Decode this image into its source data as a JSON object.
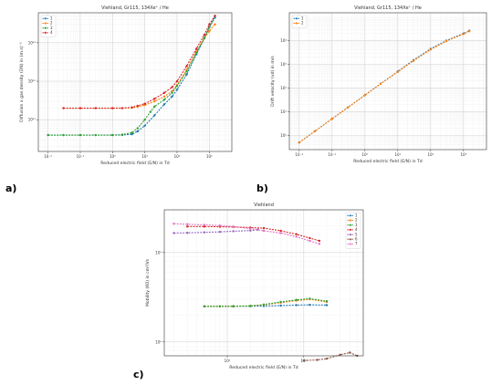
{
  "chart_data": [
    {
      "panel_label": "a)",
      "type": "line",
      "title": "Viehland, Gr115, 134Xe⁺ / He",
      "xlabel": "Reduced electric field (E/N) in Td",
      "ylabel": "Diffusion x gas density (DN) in (m.s)⁻¹",
      "xscale": "log",
      "yscale": "log",
      "xlim": [
        0.005,
        5000
      ],
      "ylim": [
        1.5e+20,
        6e+23
      ],
      "xticks": [
        {
          "v": 0.01,
          "t": "10⁻²"
        },
        {
          "v": 0.1,
          "t": "10⁻¹"
        },
        {
          "v": 1,
          "t": "10⁰"
        },
        {
          "v": 10,
          "t": "10¹"
        },
        {
          "v": 100,
          "t": "10²"
        },
        {
          "v": 1000,
          "t": "10³"
        }
      ],
      "yticks": [
        {
          "v": 1e+21,
          "t": "10²¹"
        },
        {
          "v": 1e+22,
          "t": "10²²"
        },
        {
          "v": 1e+23,
          "t": "10²³"
        }
      ],
      "grid": true,
      "legend": "top-left",
      "series": [
        {
          "name": "1",
          "color": "#1f77b4",
          "x": [
            0.01,
            0.03,
            0.1,
            0.3,
            1,
            2,
            4,
            6,
            10,
            20,
            40,
            70,
            100,
            200,
            400,
            700,
            1000,
            1500
          ],
          "y": [
            4e+20,
            4e+20,
            4e+20,
            4e+20,
            4e+20,
            4e+20,
            4.2e+20,
            5e+20,
            7e+20,
            1.3e+21,
            2.5e+21,
            4e+21,
            6e+21,
            1.5e+22,
            5e+22,
            1.3e+23,
            2.5e+23,
            4.5e+23
          ]
        },
        {
          "name": "2",
          "color": "#ff7f0e",
          "x": [
            0.03,
            0.1,
            0.3,
            1,
            2,
            4,
            6,
            10,
            20,
            40,
            70,
            100,
            200,
            400,
            700,
            1000,
            1500
          ],
          "y": [
            2e+21,
            2e+21,
            2e+21,
            2e+21,
            2e+21,
            2.05e+21,
            2.15e+21,
            2.4e+21,
            3e+21,
            4e+21,
            5.5e+21,
            8e+21,
            2e+22,
            6e+22,
            1.3e+23,
            2e+23,
            3e+23
          ]
        },
        {
          "name": "3",
          "color": "#2ca02c",
          "x": [
            0.01,
            0.03,
            0.1,
            0.3,
            1,
            2,
            4,
            6,
            10,
            15,
            20,
            40,
            70,
            100,
            200,
            400,
            700,
            1000,
            1500
          ],
          "y": [
            4e+20,
            4e+20,
            4e+20,
            4e+20,
            4e+20,
            4.1e+20,
            4.6e+20,
            6e+20,
            1e+21,
            1.6e+21,
            2.2e+21,
            3.3e+21,
            5e+21,
            7.5e+21,
            1.8e+22,
            5.5e+22,
            1.3e+23,
            2.5e+23,
            5e+23
          ]
        },
        {
          "name": "4",
          "color": "#d62728",
          "x": [
            0.03,
            0.1,
            0.3,
            1,
            2,
            4,
            6,
            10,
            20,
            40,
            70,
            100,
            200,
            400,
            700,
            1000,
            1500
          ],
          "y": [
            2e+21,
            2e+21,
            2e+21,
            2e+21,
            2e+21,
            2.1e+21,
            2.3e+21,
            2.6e+21,
            3.5e+21,
            5e+21,
            7e+21,
            1e+22,
            2.5e+22,
            7e+22,
            1.6e+23,
            3e+23,
            5e+23
          ]
        }
      ]
    },
    {
      "panel_label": "b)",
      "type": "line",
      "title": "Viehland, Gr115, 134Xe⁺ / He",
      "xlabel": "Reduced electric field (E/N) in Td",
      "ylabel": "Drift velocity (vd) in m/s",
      "xscale": "log",
      "yscale": "log",
      "xlim": [
        0.005,
        5000
      ],
      "ylim": [
        0.25,
        150000.0
      ],
      "xticks": [
        {
          "v": 0.01,
          "t": "10⁻²"
        },
        {
          "v": 0.1,
          "t": "10⁻¹"
        },
        {
          "v": 1,
          "t": "10⁰"
        },
        {
          "v": 10,
          "t": "10¹"
        },
        {
          "v": 100,
          "t": "10²"
        },
        {
          "v": 1000,
          "t": "10³"
        }
      ],
      "yticks": [
        {
          "v": 1,
          "t": "10⁰"
        },
        {
          "v": 10,
          "t": "10¹"
        },
        {
          "v": 100,
          "t": "10²"
        },
        {
          "v": 1000,
          "t": "10³"
        },
        {
          "v": 10000,
          "t": "10⁴"
        }
      ],
      "grid": true,
      "legend": "top-left",
      "series": [
        {
          "name": "1",
          "color": "#1f77b4",
          "x": [
            0.01,
            0.03,
            0.1,
            0.3,
            1,
            3,
            10,
            30,
            100,
            300,
            1000,
            1500
          ],
          "y": [
            0.5,
            1.5,
            5,
            15,
            50,
            150,
            500,
            1500,
            4500,
            10000,
            20000,
            26000
          ]
        },
        {
          "name": "2",
          "color": "#ff7f0e",
          "x": [
            0.01,
            0.03,
            0.1,
            0.3,
            1,
            3,
            10,
            30,
            100,
            300,
            1000,
            1500
          ],
          "y": [
            0.5,
            1.5,
            5,
            15,
            50,
            150,
            480,
            1400,
            4200,
            9500,
            19000,
            25000
          ]
        }
      ]
    },
    {
      "panel_label": "c)",
      "type": "line",
      "title": "Viehland",
      "xlabel": "Reduced electric field (E/N) in Td",
      "ylabel": "Mobility (K0) in cm²/Vs",
      "xscale": "log",
      "yscale": "log",
      "xlim": [
        1.5,
        600
      ],
      "ylim": [
        0.7,
        30
      ],
      "xticks": [
        {
          "v": 10,
          "t": "10¹"
        },
        {
          "v": 100,
          "t": "10²"
        }
      ],
      "yticks": [
        {
          "v": 1,
          "t": "10⁰"
        },
        {
          "v": 10,
          "t": "10¹"
        }
      ],
      "grid": true,
      "legend": "top-right",
      "series": [
        {
          "name": "1",
          "color": "#1f77b4",
          "x": [
            5,
            8,
            12,
            20,
            30,
            50,
            80,
            120,
            200
          ],
          "y": [
            2.5,
            2.5,
            2.5,
            2.51,
            2.52,
            2.55,
            2.58,
            2.6,
            2.58
          ]
        },
        {
          "name": "2",
          "color": "#ff7f0e",
          "x": [
            5,
            8,
            12,
            20,
            30,
            50,
            80,
            120,
            200
          ],
          "y": [
            2.5,
            2.5,
            2.51,
            2.52,
            2.6,
            2.75,
            2.9,
            3.0,
            2.8
          ]
        },
        {
          "name": "3",
          "color": "#2ca02c",
          "x": [
            5,
            8,
            12,
            20,
            30,
            50,
            80,
            120,
            200
          ],
          "y": [
            2.5,
            2.5,
            2.51,
            2.53,
            2.62,
            2.8,
            2.95,
            3.05,
            2.85
          ]
        },
        {
          "name": "4",
          "color": "#d62728",
          "x": [
            3,
            5,
            8,
            12,
            20,
            30,
            50,
            80,
            120,
            160
          ],
          "y": [
            19.5,
            19.5,
            19.4,
            19.3,
            19,
            18.7,
            17.5,
            16,
            14.5,
            13.5
          ]
        },
        {
          "name": "5",
          "color": "#9467bd",
          "x": [
            2,
            3,
            5,
            8,
            12,
            20,
            25
          ],
          "y": [
            16.5,
            16.6,
            16.8,
            17,
            17.3,
            17.6,
            18
          ]
        },
        {
          "name": "6",
          "color": "#8c564b",
          "x": [
            100,
            150,
            200,
            300,
            400,
            500
          ],
          "y": [
            0.62,
            0.63,
            0.65,
            0.72,
            0.76,
            0.7
          ]
        },
        {
          "name": "7",
          "color": "#e377c2",
          "x": [
            2,
            3,
            5,
            8,
            12,
            20,
            30,
            50,
            80,
            120,
            160
          ],
          "y": [
            21,
            20.7,
            20.4,
            20,
            19.5,
            18.5,
            17.5,
            16.5,
            15,
            13.5,
            12.5
          ]
        }
      ]
    }
  ]
}
